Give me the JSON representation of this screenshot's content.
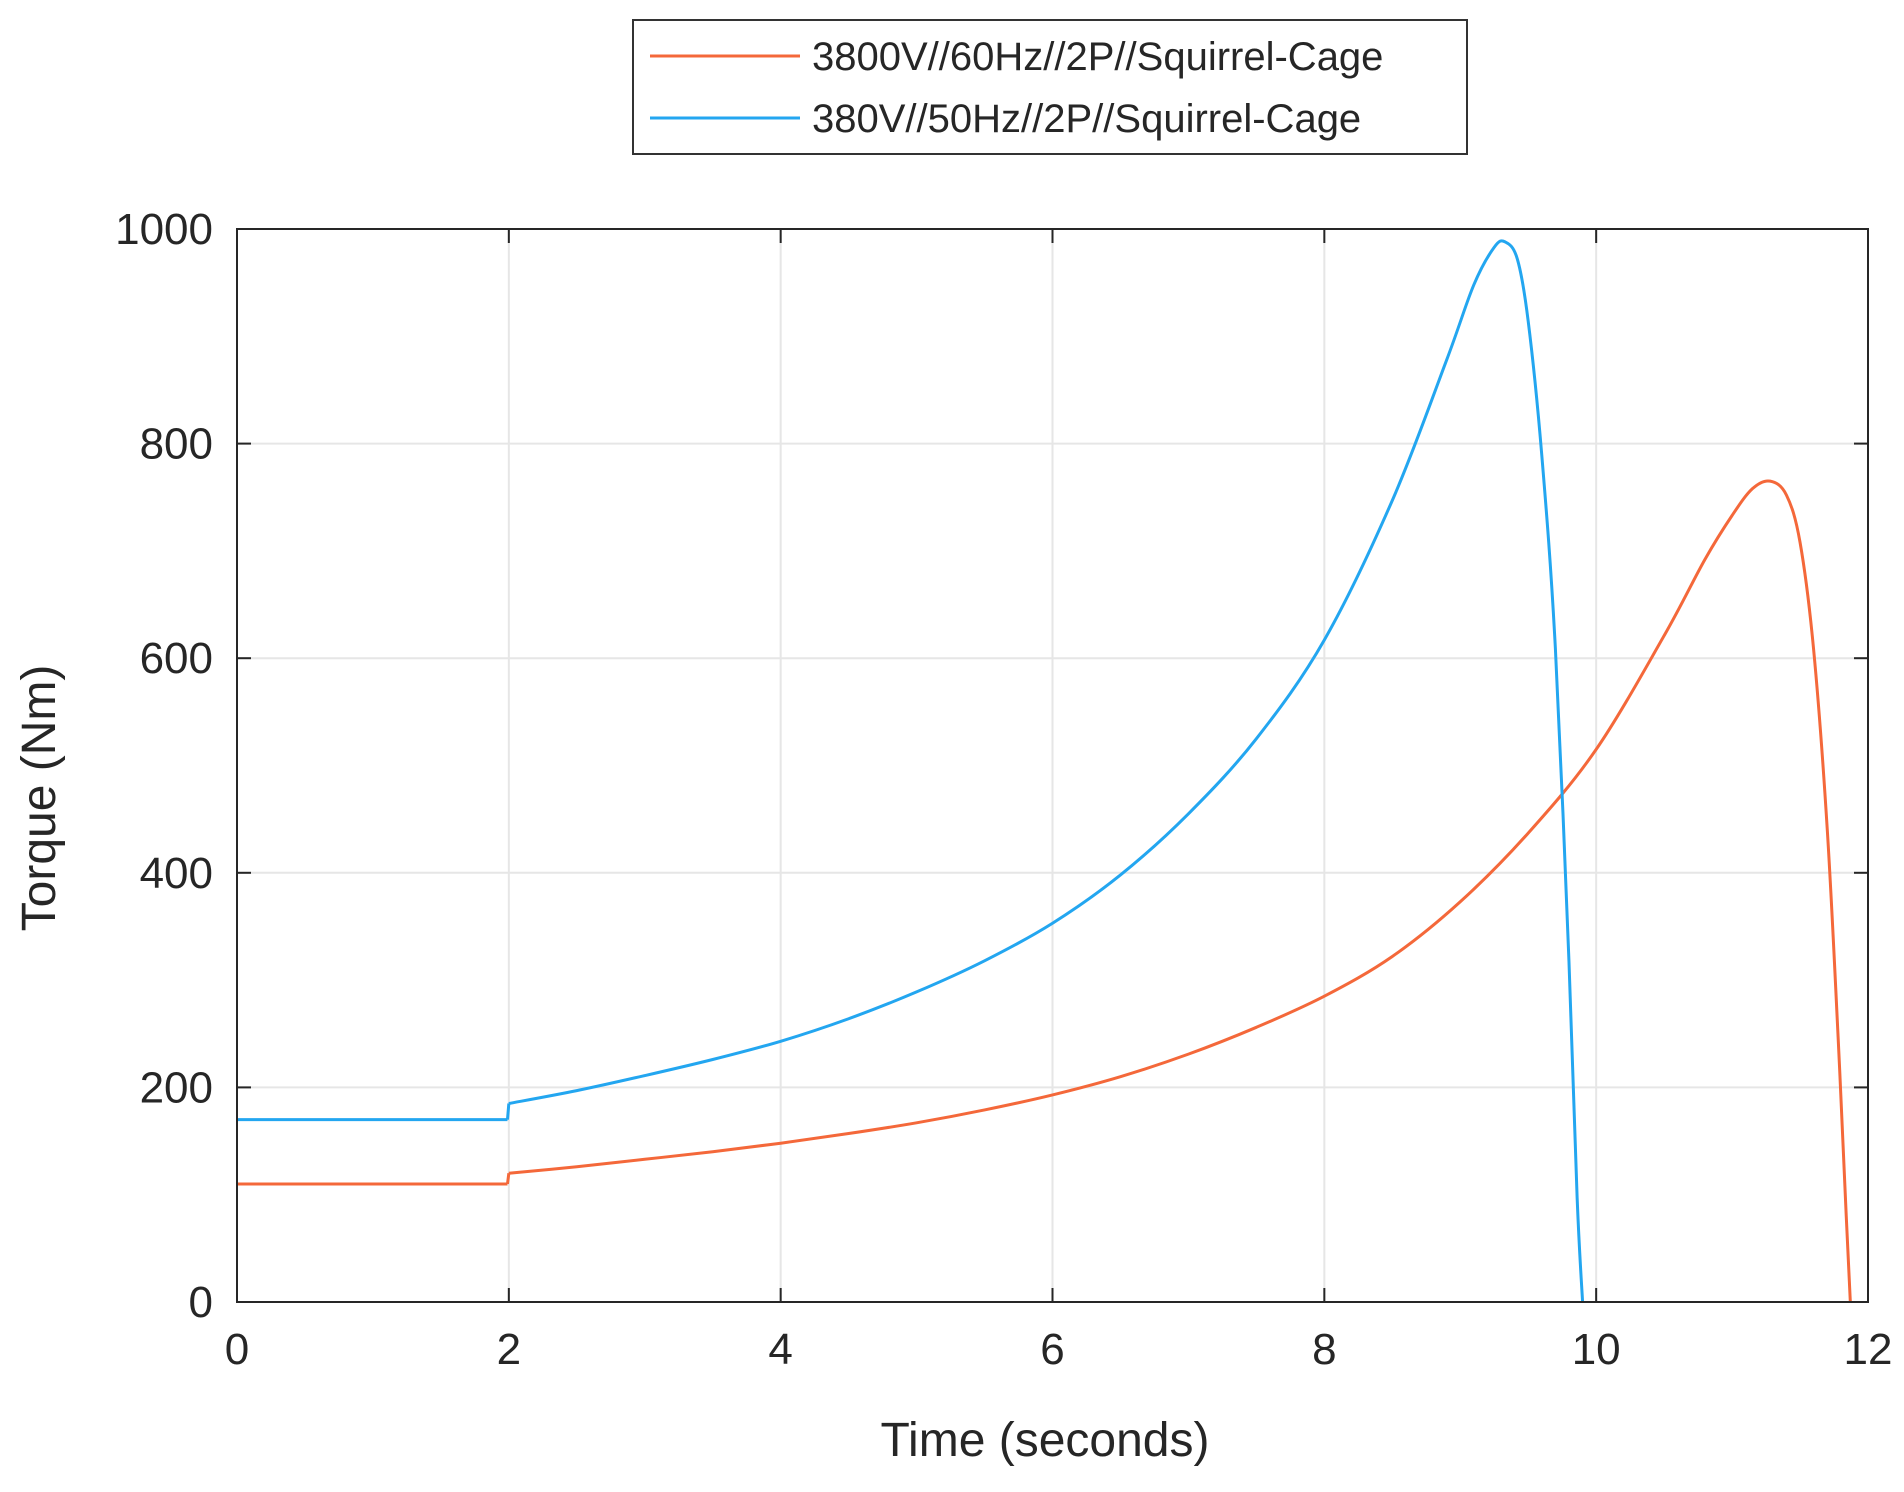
{
  "chart_data": {
    "type": "line",
    "title": "",
    "xlabel": "Time (seconds)",
    "ylabel": "Torque (Nm)",
    "xlim": [
      0,
      12
    ],
    "ylim": [
      0,
      1000
    ],
    "xticks": [
      "0",
      "2",
      "4",
      "6",
      "8",
      "10",
      "12"
    ],
    "yticks": [
      "0",
      "200",
      "400",
      "600",
      "800",
      "1000"
    ],
    "grid": true,
    "legend_position": "top-center",
    "series": [
      {
        "name": "3800V//60Hz//2P//Squirrel-Cage",
        "color": "#f4683a",
        "x": [
          0,
          1.99,
          2.0,
          2.5,
          3,
          3.5,
          4,
          4.5,
          5,
          5.5,
          6,
          6.5,
          7,
          7.5,
          8,
          8.5,
          9,
          9.5,
          10,
          10.5,
          10.8,
          11.0,
          11.15,
          11.28,
          11.4,
          11.5,
          11.6,
          11.7,
          11.78,
          11.84,
          11.87
        ],
        "y": [
          110,
          110,
          120,
          126,
          133,
          140,
          148,
          157,
          167,
          179,
          193,
          210,
          231,
          256,
          285,
          322,
          373,
          437,
          515,
          621,
          692,
          733,
          758,
          765,
          752,
          708,
          608,
          441,
          247,
          80,
          0
        ]
      },
      {
        "name": "380V//50Hz//2P//Squirrel-Cage",
        "color": "#23a6f0",
        "x": [
          0,
          1.99,
          2.0,
          2.5,
          3,
          3.5,
          4,
          4.5,
          5,
          5.5,
          6,
          6.5,
          7,
          7.5,
          8,
          8.5,
          8.9,
          9.1,
          9.25,
          9.33,
          9.42,
          9.5,
          9.6,
          9.7,
          9.8,
          9.86,
          9.9
        ],
        "y": [
          170,
          170,
          185,
          197,
          211,
          226,
          243,
          264,
          289,
          318,
          353,
          398,
          455,
          525,
          617,
          747,
          878,
          948,
          983,
          988,
          972,
          914,
          789,
          609,
          317,
          97,
          0
        ]
      }
    ]
  }
}
